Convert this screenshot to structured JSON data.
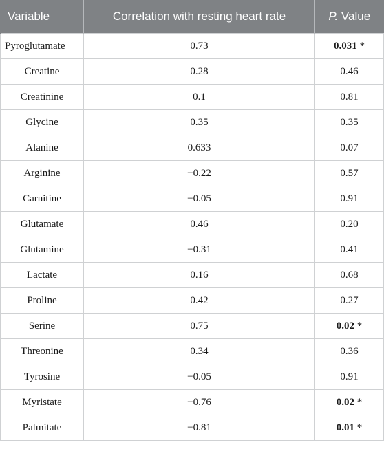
{
  "table": {
    "headers": {
      "variable": "Variable",
      "correlation": "Correlation with resting heart rate",
      "p_letter": "P.",
      "p_word": " Value"
    },
    "rows": [
      {
        "variable": "Pyroglutamate",
        "correlation": "0.73",
        "p_value": "0.031",
        "significant": true,
        "marker": " *"
      },
      {
        "variable": "Creatine",
        "correlation": "0.28",
        "p_value": "0.46",
        "significant": false,
        "marker": ""
      },
      {
        "variable": "Creatinine",
        "correlation": "0.1",
        "p_value": "0.81",
        "significant": false,
        "marker": ""
      },
      {
        "variable": "Glycine",
        "correlation": "0.35",
        "p_value": "0.35",
        "significant": false,
        "marker": ""
      },
      {
        "variable": "Alanine",
        "correlation": "0.633",
        "p_value": "0.07",
        "significant": false,
        "marker": ""
      },
      {
        "variable": "Arginine",
        "correlation": "−0.22",
        "p_value": "0.57",
        "significant": false,
        "marker": ""
      },
      {
        "variable": "Carnitine",
        "correlation": "−0.05",
        "p_value": "0.91",
        "significant": false,
        "marker": ""
      },
      {
        "variable": "Glutamate",
        "correlation": "0.46",
        "p_value": "0.20",
        "significant": false,
        "marker": ""
      },
      {
        "variable": "Glutamine",
        "correlation": "−0.31",
        "p_value": "0.41",
        "significant": false,
        "marker": ""
      },
      {
        "variable": "Lactate",
        "correlation": "0.16",
        "p_value": "0.68",
        "significant": false,
        "marker": ""
      },
      {
        "variable": "Proline",
        "correlation": "0.42",
        "p_value": "0.27",
        "significant": false,
        "marker": ""
      },
      {
        "variable": "Serine",
        "correlation": "0.75",
        "p_value": "0.02",
        "significant": true,
        "marker": " *"
      },
      {
        "variable": "Threonine",
        "correlation": "0.34",
        "p_value": "0.36",
        "significant": false,
        "marker": ""
      },
      {
        "variable": "Tyrosine",
        "correlation": "−0.05",
        "p_value": "0.91",
        "significant": false,
        "marker": ""
      },
      {
        "variable": "Myristate",
        "correlation": "−0.76",
        "p_value": "0.02",
        "significant": true,
        "marker": " *"
      },
      {
        "variable": "Palmitate",
        "correlation": "−0.81",
        "p_value": "0.01",
        "significant": true,
        "marker": " *"
      }
    ]
  }
}
